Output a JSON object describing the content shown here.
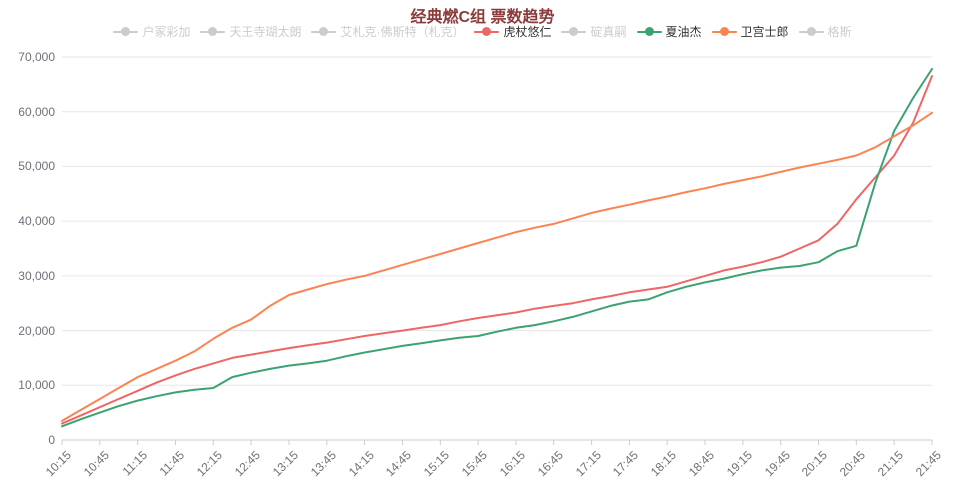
{
  "title": {
    "text": "经典燃C组 票数趋势",
    "color": "#8b3a3a"
  },
  "legend": {
    "active_text_color": "#333333",
    "inactive_color": "#cccccc",
    "items": [
      {
        "label": "户冢彩加",
        "color": "#5470c6",
        "active": false
      },
      {
        "label": "天王寺瑚太朗",
        "color": "#91cc75",
        "active": false
      },
      {
        "label": "艾札克·佛斯特（札克）",
        "color": "#fac858",
        "active": false
      },
      {
        "label": "虎杖悠仁",
        "color": "#ee6666",
        "active": true
      },
      {
        "label": "碇真嗣",
        "color": "#73c0de",
        "active": false
      },
      {
        "label": "夏油杰",
        "color": "#3ba272",
        "active": true
      },
      {
        "label": "卫宫士郎",
        "color": "#fc8452",
        "active": true
      },
      {
        "label": "格斯",
        "color": "#9a60b4",
        "active": false
      }
    ]
  },
  "chart_data": {
    "type": "line",
    "title": "经典燃C组 票数趋势",
    "xlabel": "",
    "ylabel": "",
    "ylim": [
      0,
      70000
    ],
    "grid": true,
    "legend_position": "top",
    "y_ticks": [
      0,
      10000,
      20000,
      30000,
      40000,
      50000,
      60000,
      70000
    ],
    "y_tick_labels": [
      "0",
      "10,000",
      "20,000",
      "30,000",
      "40,000",
      "50,000",
      "60,000",
      "70,000"
    ],
    "x": [
      "10:15",
      "10:30",
      "10:45",
      "11:00",
      "11:15",
      "11:30",
      "11:45",
      "12:00",
      "12:15",
      "12:30",
      "12:45",
      "13:00",
      "13:15",
      "13:30",
      "13:45",
      "14:00",
      "14:15",
      "14:30",
      "14:45",
      "15:00",
      "15:15",
      "15:30",
      "15:45",
      "16:00",
      "16:15",
      "16:30",
      "16:45",
      "17:00",
      "17:15",
      "17:30",
      "17:45",
      "18:00",
      "18:15",
      "18:30",
      "18:45",
      "19:00",
      "19:15",
      "19:30",
      "19:45",
      "20:00",
      "20:15",
      "20:30",
      "20:45",
      "21:00",
      "21:15",
      "21:30",
      "21:45"
    ],
    "x_tick_labels": [
      "10:15",
      "10:45",
      "11:15",
      "11:45",
      "12:15",
      "12:45",
      "13:15",
      "13:45",
      "14:15",
      "14:45",
      "15:15",
      "15:45",
      "16:15",
      "16:45",
      "17:15",
      "17:45",
      "18:15",
      "18:45",
      "19:15",
      "19:45",
      "20:15",
      "20:45",
      "21:15",
      "21:45"
    ],
    "series": [
      {
        "name": "虎杖悠仁",
        "color": "#ee6666",
        "values": [
          3000,
          4500,
          6000,
          7500,
          9000,
          10500,
          11800,
          13000,
          14000,
          15000,
          15600,
          16200,
          16800,
          17300,
          17800,
          18400,
          19000,
          19500,
          20000,
          20500,
          21000,
          21700,
          22300,
          22800,
          23300,
          24000,
          24500,
          25000,
          25700,
          26300,
          27000,
          27500,
          28000,
          29000,
          30000,
          31000,
          31700,
          32500,
          33500,
          35000,
          36500,
          39500,
          44000,
          48000,
          52000,
          58000,
          66500
        ]
      },
      {
        "name": "夏油杰",
        "color": "#3ba272",
        "values": [
          2500,
          3800,
          5000,
          6200,
          7200,
          8000,
          8700,
          9200,
          9500,
          11500,
          12300,
          13000,
          13600,
          14000,
          14500,
          15300,
          16000,
          16600,
          17200,
          17700,
          18200,
          18700,
          19000,
          19800,
          20500,
          21000,
          21700,
          22500,
          23500,
          24500,
          25300,
          25700,
          27000,
          28000,
          28800,
          29500,
          30300,
          31000,
          31500,
          31800,
          32500,
          34500,
          35500,
          47000,
          56500,
          62500,
          67800
        ]
      },
      {
        "name": "卫宫士郎",
        "color": "#fc8452",
        "values": [
          3500,
          5500,
          7500,
          9500,
          11500,
          13000,
          14500,
          16200,
          18500,
          20500,
          22000,
          24500,
          26500,
          27500,
          28500,
          29300,
          30000,
          31000,
          32000,
          33000,
          34000,
          35000,
          36000,
          37000,
          38000,
          38800,
          39500,
          40500,
          41500,
          42300,
          43000,
          43800,
          44500,
          45300,
          46000,
          46800,
          47500,
          48200,
          49000,
          49800,
          50500,
          51200,
          52000,
          53500,
          55500,
          57500,
          59800
        ]
      }
    ],
    "hidden_series": [
      "户冢彩加",
      "天王寺瑚太朗",
      "艾札克·佛斯特（札克）",
      "碇真嗣",
      "格斯"
    ]
  }
}
